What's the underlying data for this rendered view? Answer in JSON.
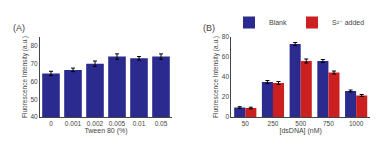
{
  "chart_data": [
    {
      "type": "bar",
      "title": "(A)",
      "xlabel": "Tween 80 (%)",
      "ylabel": "Fluorescence Intensity (a.u.)",
      "categories": [
        "0",
        "0.001",
        "0.002",
        "0.005",
        "0.01",
        "0.05"
      ],
      "values": [
        64.5,
        66.5,
        70.0,
        74.0,
        73.0,
        74.0
      ],
      "errors": [
        1.2,
        1.0,
        1.5,
        1.5,
        1.0,
        1.5
      ],
      "color": "#2b2b8f",
      "ylim": [
        40,
        85
      ],
      "yticks": [
        40,
        50,
        60,
        70,
        80
      ],
      "grid": false
    },
    {
      "type": "bar",
      "title": "(B)",
      "xlabel": "[dsDNA] (nM)",
      "ylabel": "Fluorescence Intensity (a.u.)",
      "categories": [
        "50",
        "250",
        "500",
        "750",
        "1000"
      ],
      "series": [
        {
          "name": "Blank",
          "color": "#2b2b8f",
          "values": [
            9.5,
            35.0,
            73.0,
            56.0,
            26.0
          ],
          "errors": [
            0.8,
            1.5,
            1.5,
            1.5,
            1.0
          ]
        },
        {
          "name": "S²⁻ added",
          "color": "#cc2020",
          "values": [
            9.0,
            34.0,
            56.0,
            44.5,
            21.5
          ],
          "errors": [
            0.8,
            1.5,
            2.0,
            1.5,
            1.0
          ]
        }
      ],
      "ylim": [
        0,
        80
      ],
      "yticks": [
        0,
        20,
        40,
        60,
        80
      ],
      "grid": false,
      "legend": "upper right"
    }
  ]
}
